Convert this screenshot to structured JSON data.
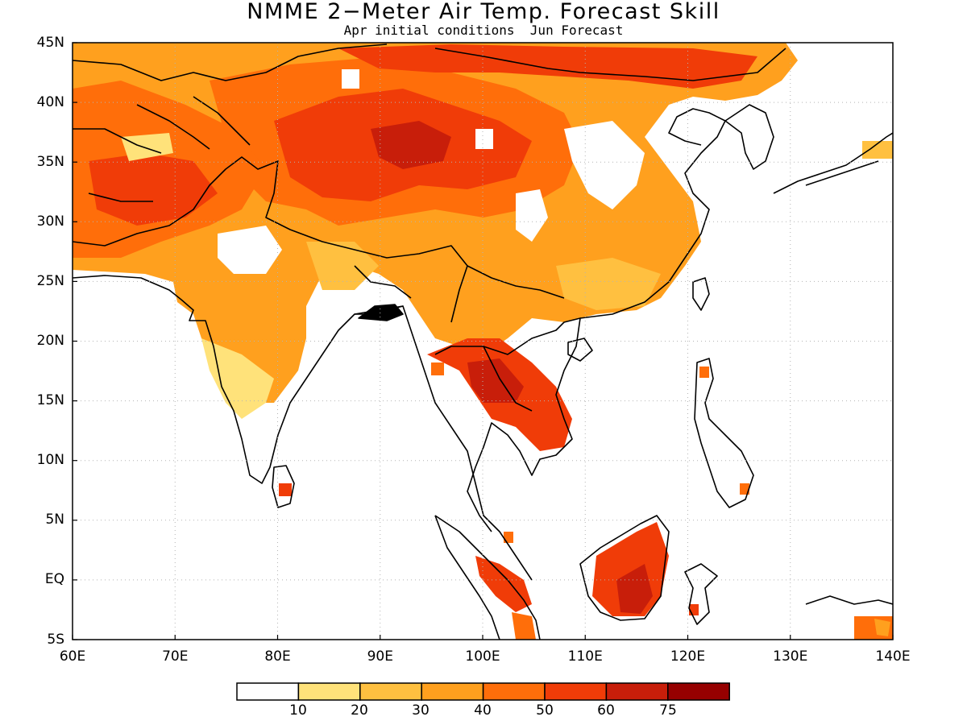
{
  "title": "NMME 2−Meter Air Temp. Forecast Skill",
  "subtitle": "Apr initial conditions  Jun Forecast",
  "y_axis": {
    "ticks": [
      "45N",
      "40N",
      "35N",
      "30N",
      "25N",
      "20N",
      "15N",
      "10N",
      "5N",
      "EQ",
      "5S"
    ]
  },
  "x_axis": {
    "ticks": [
      "60E",
      "70E",
      "80E",
      "90E",
      "100E",
      "110E",
      "120E",
      "130E",
      "140E"
    ]
  },
  "colorbar": {
    "labels": [
      "10",
      "20",
      "30",
      "40",
      "50",
      "60",
      "75"
    ],
    "colors": [
      "#ffffff",
      "#ffe27a",
      "#ffc040",
      "#ffa01e",
      "#ff6e0a",
      "#f03c08",
      "#c81e0a",
      "#960000"
    ]
  },
  "map": {
    "lon_range": [
      60,
      140
    ],
    "lat_range": [
      -5,
      45
    ],
    "gridlines": "dotted",
    "land_outline": "#000000"
  }
}
